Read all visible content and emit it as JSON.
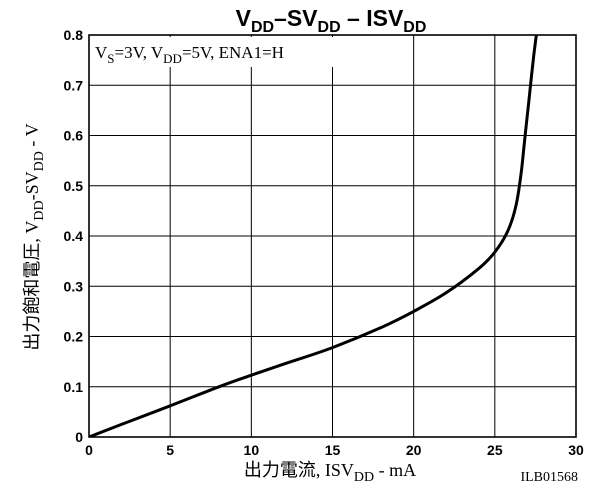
{
  "chart_data": {
    "type": "line",
    "title": {
      "parts": [
        {
          "text": "V",
          "sub": false
        },
        {
          "text": "DD",
          "sub": true
        },
        {
          "text": "–SV",
          "sub": false
        },
        {
          "text": "DD",
          "sub": true
        },
        {
          "text": "  –  ISV",
          "sub": false
        },
        {
          "text": "DD",
          "sub": true
        }
      ]
    },
    "condition": {
      "parts": [
        {
          "text": "V",
          "sub": false
        },
        {
          "text": "S",
          "sub": true
        },
        {
          "text": "=3V, V",
          "sub": false
        },
        {
          "text": "DD",
          "sub": true
        },
        {
          "text": "=5V, ENA1=H",
          "sub": false
        }
      ]
    },
    "xlabel": {
      "parts": [
        {
          "text": "出力電流, ISV",
          "sub": false
        },
        {
          "text": "DD",
          "sub": true
        },
        {
          "text": " - mA",
          "sub": false
        }
      ]
    },
    "ylabel": {
      "parts": [
        {
          "text": "出力飽和電圧, V",
          "sub": false
        },
        {
          "text": "DD",
          "sub": true
        },
        {
          "text": "-SV",
          "sub": false
        },
        {
          "text": "DD",
          "sub": true
        },
        {
          "text": " - V",
          "sub": false
        }
      ]
    },
    "code": "ILB01568",
    "xlim": [
      0,
      30
    ],
    "ylim": [
      0,
      0.8
    ],
    "xticks": [
      0,
      5,
      10,
      15,
      20,
      25,
      30
    ],
    "xtick_labels": [
      "0",
      "5",
      "10",
      "15",
      "20",
      "25",
      "30"
    ],
    "yticks": [
      0,
      0.1,
      0.2,
      0.3,
      0.4,
      0.5,
      0.6,
      0.7,
      0.8
    ],
    "ytick_labels": [
      "0",
      "0.1",
      "0.2",
      "0.3",
      "0.4",
      "0.5",
      "0.6",
      "0.7",
      "0.8"
    ],
    "grid": true,
    "series": [
      {
        "x": [
          0,
          2,
          5,
          8,
          10,
          12,
          15,
          18,
          20,
          22,
          24,
          25,
          25.8,
          26.3,
          26.6,
          26.8,
          27.0,
          27.2,
          27.4,
          27.6
        ],
        "y": [
          0,
          0.025,
          0.062,
          0.1,
          0.123,
          0.145,
          0.178,
          0.218,
          0.25,
          0.287,
          0.335,
          0.368,
          0.41,
          0.46,
          0.52,
          0.58,
          0.64,
          0.7,
          0.76,
          0.81
        ]
      }
    ],
    "colors": {
      "line": "#000000",
      "grid": "#000000",
      "frame": "#000000"
    }
  }
}
